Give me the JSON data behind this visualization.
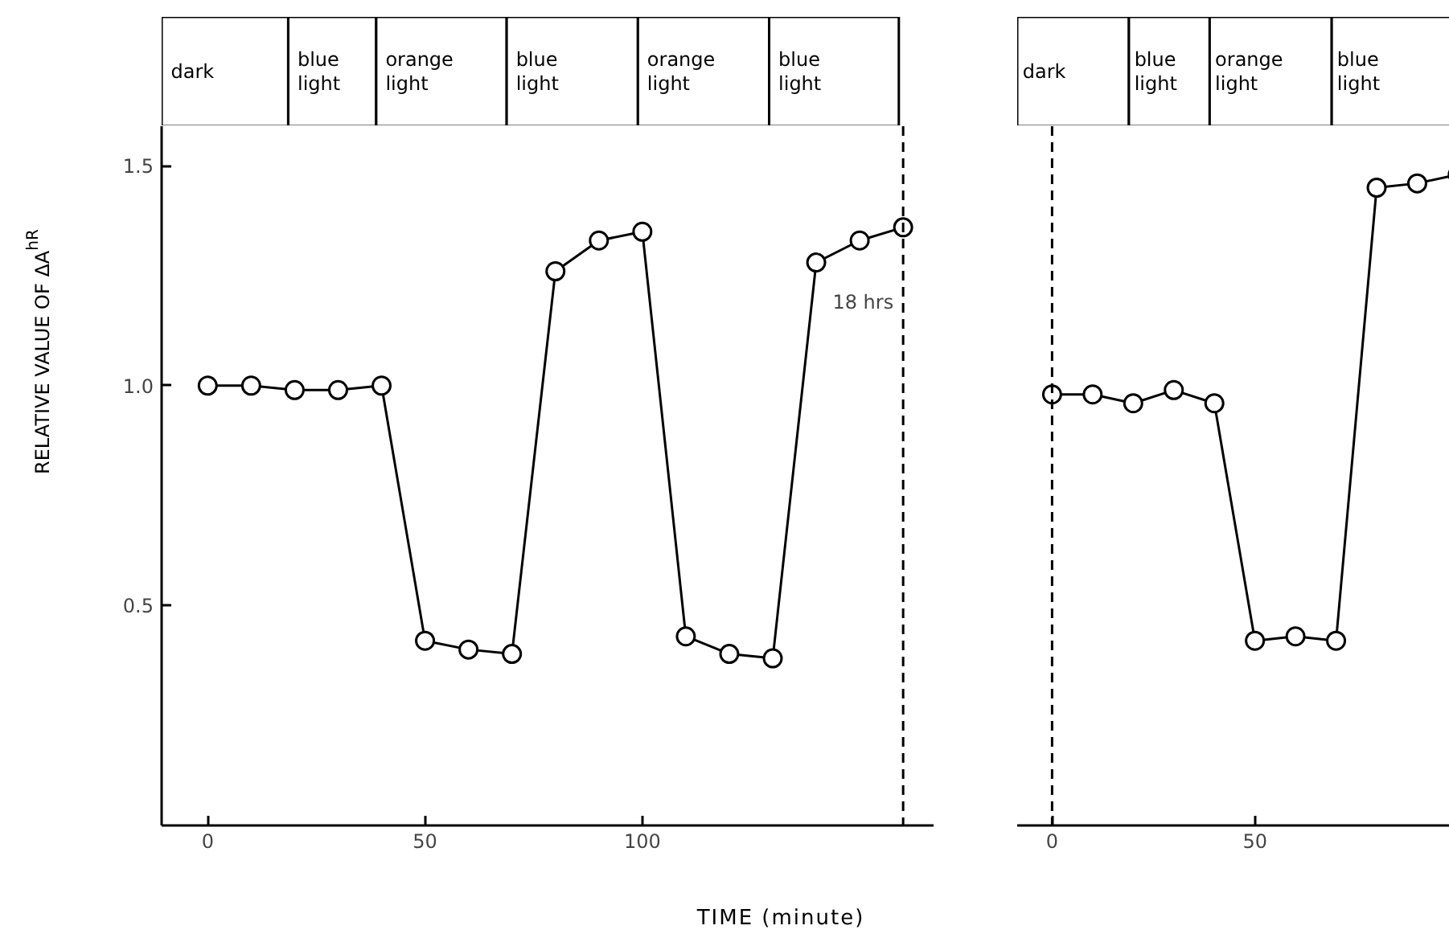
{
  "chart_data": [
    {
      "type": "line",
      "ylabel": "RELATIVE VALUE OF ΔA$^{hR}$",
      "xlabel": "TIME (minute)",
      "marker": "circle",
      "x": [
        0,
        10,
        20,
        30,
        40,
        50,
        60,
        70,
        80,
        90,
        100,
        110,
        120,
        130,
        140,
        150,
        160
      ],
      "series": [
        {
          "color": "#000000",
          "values": [
            1.0,
            1.0,
            0.99,
            0.99,
            1.0,
            0.42,
            0.4,
            0.39,
            1.26,
            1.33,
            1.35,
            0.43,
            0.39,
            0.38,
            1.28,
            1.33,
            1.36
          ]
        }
      ],
      "xlim": [
        -10.6,
        167
      ],
      "xticks": [
        0,
        50,
        100
      ],
      "ylim": [
        0,
        1.59
      ],
      "yticks": [
        {
          "value": 0.5,
          "label": "0.5"
        },
        {
          "value": 1.0,
          "label": "1.0"
        },
        {
          "value": 1.5,
          "label": "1.5"
        }
      ],
      "ref_lines": [
        {
          "axis": "x",
          "value": 160,
          "line_style": "dashed",
          "color": "#000000"
        }
      ],
      "annotations": [
        "dark",
        "blue light",
        "orange light",
        "blue light",
        "orange light",
        "blue light",
        {
          "text": "18 hrs",
          "x": 160,
          "y": 1.19
        }
      ]
    },
    {
      "type": "line",
      "marker": "circle",
      "tick_labels": "x",
      "x": [
        0,
        10,
        20,
        30,
        40,
        50,
        60,
        70,
        80,
        90,
        100
      ],
      "series": [
        {
          "color": "#000000",
          "values": [
            0.98,
            0.98,
            0.96,
            0.99,
            0.96,
            0.42,
            0.43,
            0.42,
            1.45,
            1.46,
            1.48
          ]
        }
      ],
      "xlim": [
        -8.6,
        102
      ],
      "xticks": [
        0,
        50
      ],
      "ylim": [
        0,
        1.59
      ],
      "ref_lines": [
        {
          "axis": "x",
          "value": 0,
          "line_style": "dashed",
          "color": "#000000"
        }
      ],
      "annotations": [
        "dark",
        "blue light",
        "orange light",
        "blue light"
      ]
    }
  ]
}
